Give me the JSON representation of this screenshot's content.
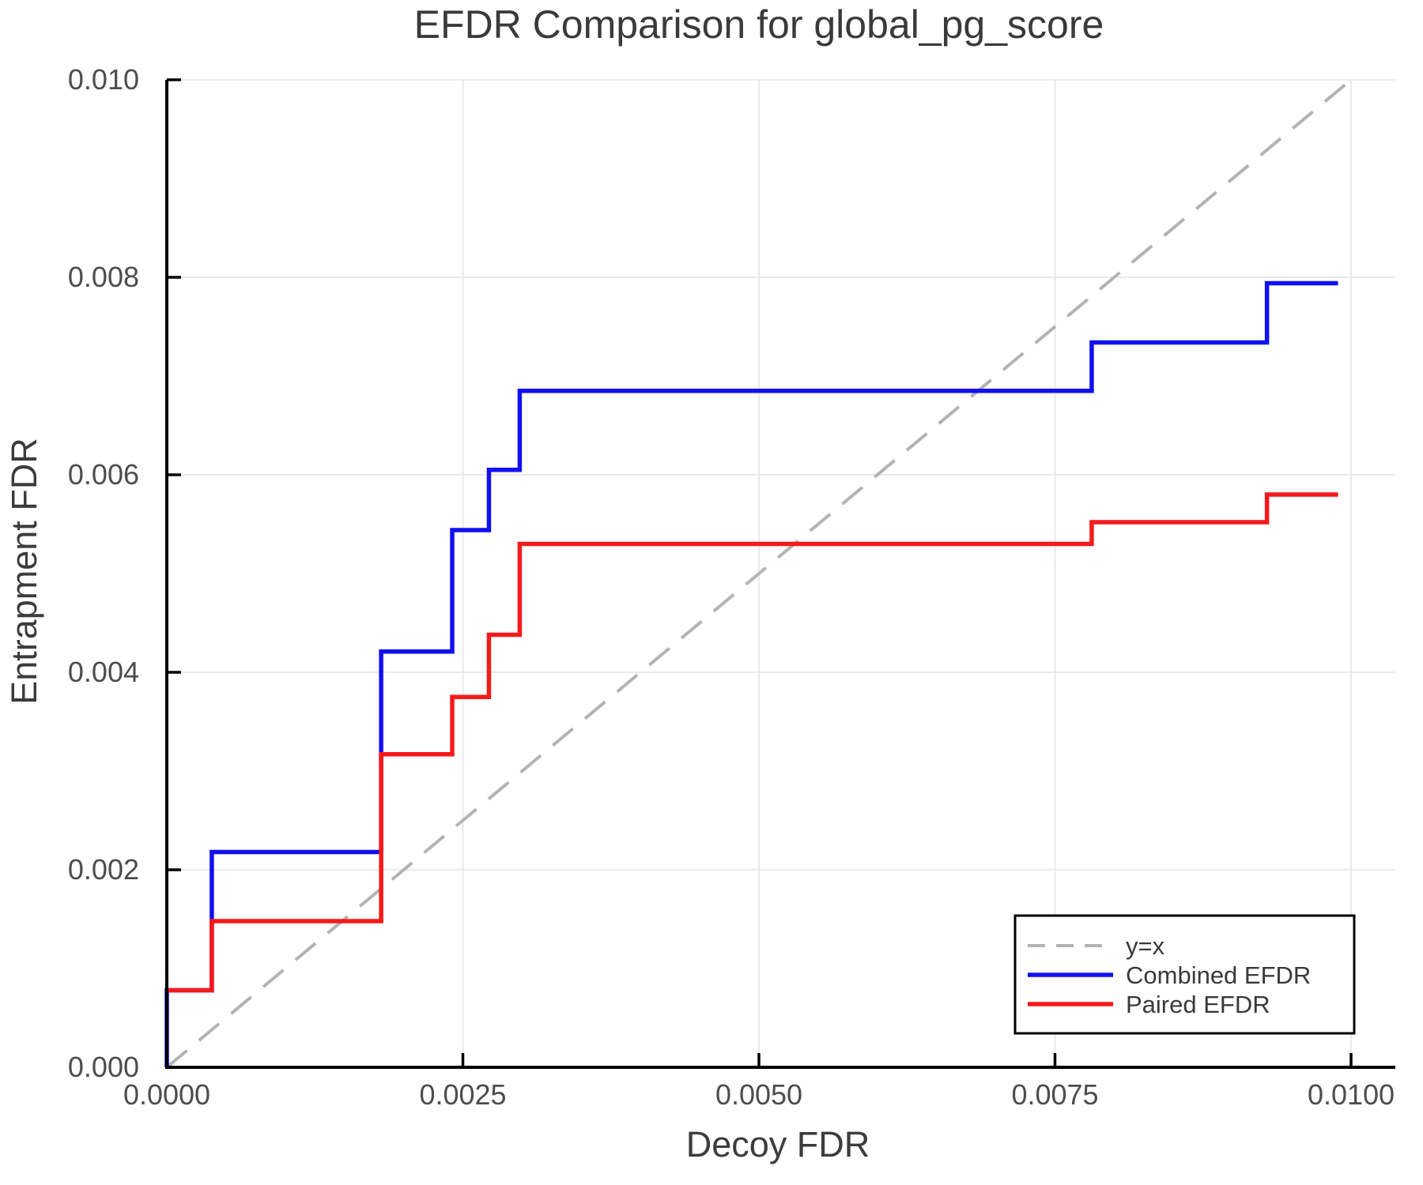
{
  "title": "EFDR Comparison for global_pg_score",
  "chart_data": {
    "type": "line",
    "subtype": "step-post",
    "title": "EFDR Comparison for global_pg_score",
    "xlabel": "Decoy FDR",
    "ylabel": "Entrapment FDR",
    "xlim": [
      0.0,
      0.0104
    ],
    "ylim": [
      0.0,
      0.01
    ],
    "grid": true,
    "legend_position": "bottom-right",
    "x_ticks": [
      {
        "v": 0.0,
        "label": "0.0000"
      },
      {
        "v": 0.0025,
        "label": "0.0025"
      },
      {
        "v": 0.005,
        "label": "0.0050"
      },
      {
        "v": 0.0075,
        "label": "0.0075"
      },
      {
        "v": 0.01,
        "label": "0.0100"
      }
    ],
    "y_ticks": [
      {
        "v": 0.0,
        "label": "0.000"
      },
      {
        "v": 0.002,
        "label": "0.002"
      },
      {
        "v": 0.004,
        "label": "0.004"
      },
      {
        "v": 0.006,
        "label": "0.006"
      },
      {
        "v": 0.008,
        "label": "0.008"
      },
      {
        "v": 0.01,
        "label": "0.010"
      }
    ],
    "series": [
      {
        "name": "y=x",
        "color": "#b3b3b3",
        "style": "dashed",
        "step": false,
        "points": [
          [
            0.0,
            0.0
          ],
          [
            0.01,
            0.01
          ]
        ]
      },
      {
        "name": "Combined EFDR",
        "color": "#1010f0",
        "style": "solid",
        "step": true,
        "points": [
          [
            0.0,
            0.0
          ],
          [
            0.0,
            0.00078
          ],
          [
            0.00038,
            0.00218
          ],
          [
            0.00181,
            0.00421
          ],
          [
            0.00241,
            0.00544
          ],
          [
            0.00272,
            0.00605
          ],
          [
            0.00298,
            0.00685
          ],
          [
            0.00781,
            0.00734
          ],
          [
            0.00929,
            0.00794
          ],
          [
            0.00989,
            0.00794
          ]
        ]
      },
      {
        "name": "Paired EFDR",
        "color": "#f51a1a",
        "style": "solid",
        "step": true,
        "points": [
          [
            0.0,
            0.00078
          ],
          [
            0.00038,
            0.00148
          ],
          [
            0.00181,
            0.00317
          ],
          [
            0.00241,
            0.00375
          ],
          [
            0.00272,
            0.00438
          ],
          [
            0.00298,
            0.0053
          ],
          [
            0.00781,
            0.00552
          ],
          [
            0.00929,
            0.0058
          ],
          [
            0.00989,
            0.0058
          ]
        ]
      }
    ],
    "colors": {
      "spine": "#000000",
      "grid": "#e4e4e4",
      "plot_bg": "#ffffff",
      "legend_border": "#000000",
      "legend_bg": "#ffffff"
    }
  }
}
